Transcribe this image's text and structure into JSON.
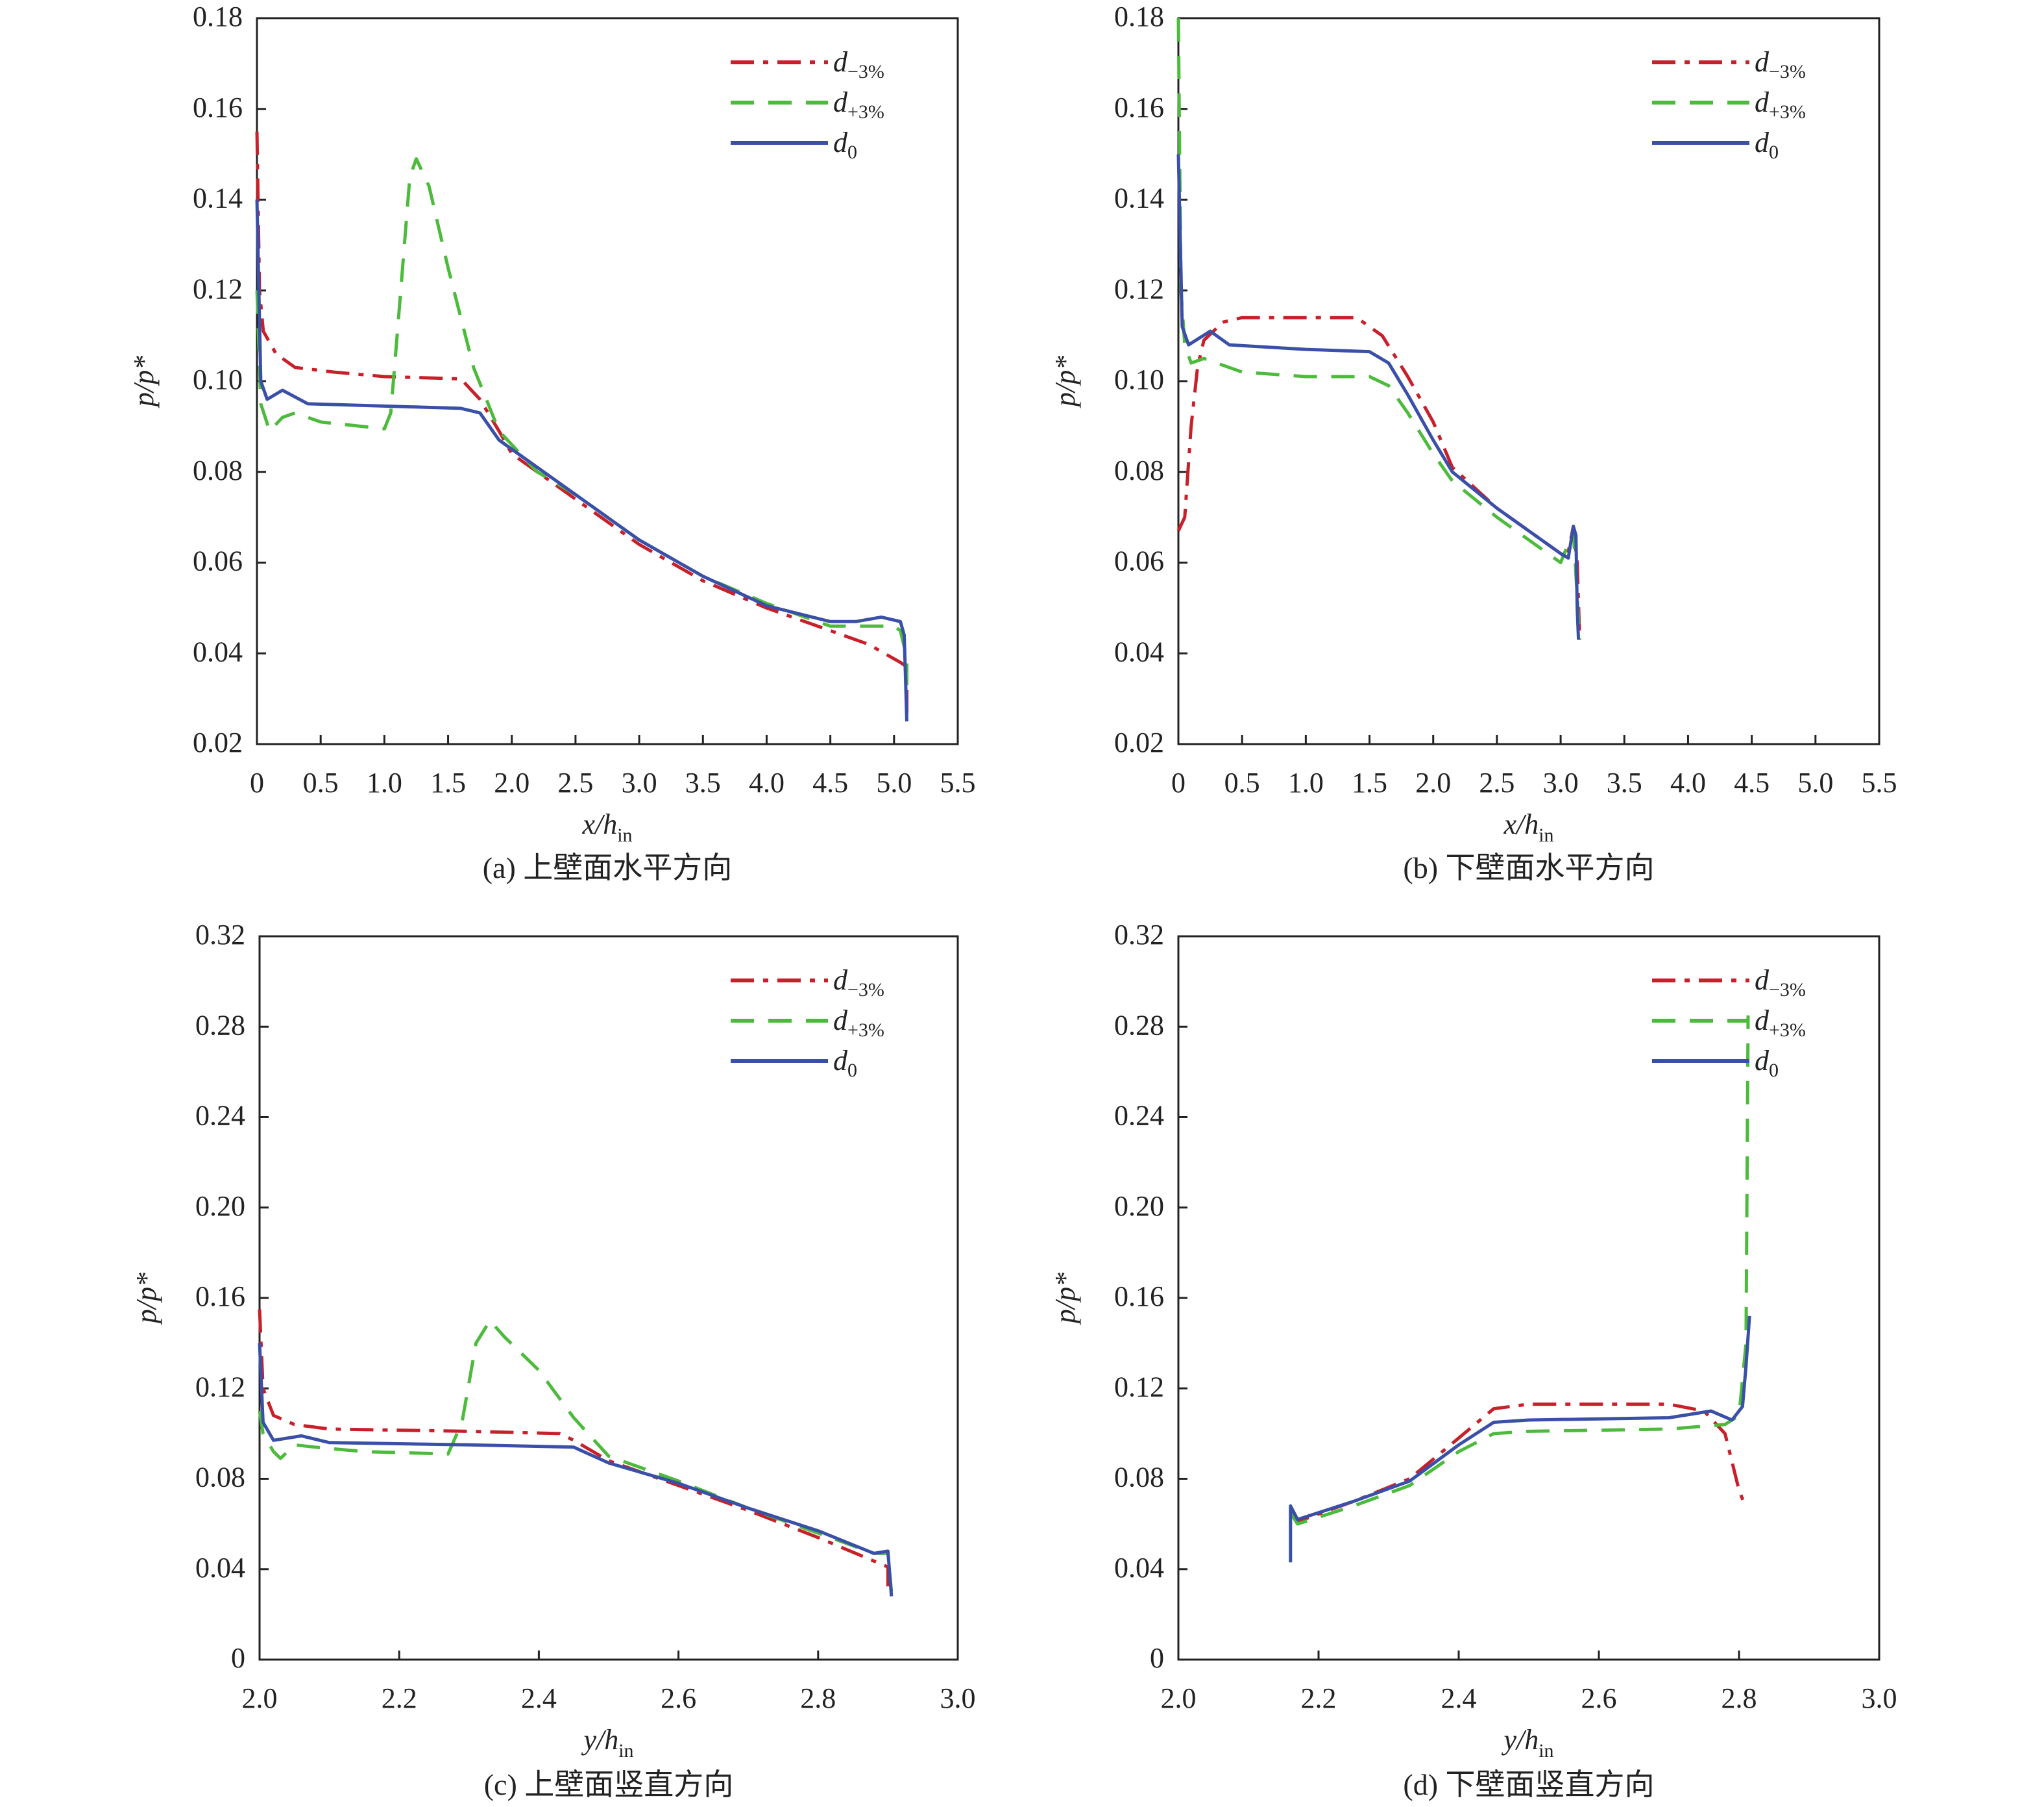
{
  "colors": {
    "d_minus": "#c8202a",
    "d_plus": "#4cbb3c",
    "d0": "#3a4fa8"
  },
  "chart_data": [
    {
      "type": "line",
      "caption": "(a) 上壁面水平方向",
      "xlabel": {
        "main": "x/h",
        "sub": "in"
      },
      "ylabel": "p/p*",
      "xlim": [
        0,
        5.5
      ],
      "ylim": [
        0.02,
        0.18
      ],
      "xticks": [
        "0",
        "0.5",
        "1.0",
        "1.5",
        "2.0",
        "2.5",
        "3.0",
        "3.5",
        "4.0",
        "4.5",
        "5.0",
        "5.5"
      ],
      "xtick_values": [
        0,
        0.5,
        1,
        1.5,
        2,
        2.5,
        3,
        3.5,
        4,
        4.5,
        5,
        5.5
      ],
      "yticks": [
        "0.02",
        "0.04",
        "0.06",
        "0.08",
        "0.10",
        "0.12",
        "0.14",
        "0.16",
        "0.18"
      ],
      "ytick_values": [
        0.02,
        0.04,
        0.06,
        0.08,
        0.1,
        0.12,
        0.14,
        0.16,
        0.18
      ],
      "legend": "top-right",
      "series": [
        {
          "name": "d",
          "sub": "−3%",
          "style": "dashdot",
          "color": "#c8202a",
          "points": [
            [
              0,
              0.155
            ],
            [
              0.02,
              0.12
            ],
            [
              0.05,
              0.111
            ],
            [
              0.15,
              0.106
            ],
            [
              0.3,
              0.103
            ],
            [
              0.6,
              0.102
            ],
            [
              1.0,
              0.101
            ],
            [
              1.6,
              0.1005
            ],
            [
              1.75,
              0.096
            ],
            [
              1.9,
              0.089
            ],
            [
              2.0,
              0.084
            ],
            [
              2.5,
              0.074
            ],
            [
              3.0,
              0.064
            ],
            [
              3.5,
              0.056
            ],
            [
              4.0,
              0.05
            ],
            [
              4.5,
              0.045
            ],
            [
              4.8,
              0.042
            ],
            [
              5.05,
              0.038
            ],
            [
              5.1,
              0.037
            ],
            [
              5.1,
              0.025
            ]
          ]
        },
        {
          "name": "d",
          "sub": "+3%",
          "style": "dashed",
          "color": "#4cbb3c",
          "points": [
            [
              0,
              0.12
            ],
            [
              0.03,
              0.095
            ],
            [
              0.1,
              0.089
            ],
            [
              0.2,
              0.092
            ],
            [
              0.3,
              0.093
            ],
            [
              0.5,
              0.091
            ],
            [
              1.0,
              0.0895
            ],
            [
              1.05,
              0.093
            ],
            [
              1.1,
              0.11
            ],
            [
              1.2,
              0.145
            ],
            [
              1.25,
              0.149
            ],
            [
              1.35,
              0.143
            ],
            [
              1.5,
              0.125
            ],
            [
              1.7,
              0.103
            ],
            [
              1.9,
              0.089
            ],
            [
              2.2,
              0.08
            ],
            [
              2.5,
              0.075
            ],
            [
              3.0,
              0.065
            ],
            [
              3.5,
              0.057
            ],
            [
              4.0,
              0.051
            ],
            [
              4.5,
              0.046
            ],
            [
              5.0,
              0.046
            ],
            [
              5.05,
              0.045
            ],
            [
              5.1,
              0.039
            ],
            [
              5.1,
              0.033
            ]
          ]
        },
        {
          "name": "d",
          "sub": "0",
          "style": "solid",
          "color": "#3a4fa8",
          "points": [
            [
              0,
              0.14
            ],
            [
              0.03,
              0.1
            ],
            [
              0.08,
              0.096
            ],
            [
              0.2,
              0.098
            ],
            [
              0.4,
              0.095
            ],
            [
              1.0,
              0.0945
            ],
            [
              1.6,
              0.094
            ],
            [
              1.75,
              0.093
            ],
            [
              1.9,
              0.087
            ],
            [
              2.0,
              0.085
            ],
            [
              2.5,
              0.075
            ],
            [
              3.0,
              0.065
            ],
            [
              3.5,
              0.057
            ],
            [
              4.0,
              0.0505
            ],
            [
              4.5,
              0.047
            ],
            [
              4.7,
              0.047
            ],
            [
              4.9,
              0.048
            ],
            [
              5.05,
              0.047
            ],
            [
              5.08,
              0.044
            ],
            [
              5.1,
              0.025
            ]
          ]
        }
      ]
    },
    {
      "type": "line",
      "caption": "(b) 下壁面水平方向",
      "xlabel": {
        "main": "x/h",
        "sub": "in"
      },
      "ylabel": "p/p*",
      "xlim": [
        0,
        5.5
      ],
      "ylim": [
        0.02,
        0.18
      ],
      "xticks": [
        "0",
        "0.5",
        "1.0",
        "1.5",
        "2.0",
        "2.5",
        "3.0",
        "3.5",
        "4.0",
        "4.5",
        "5.0",
        "5.5"
      ],
      "xtick_values": [
        0,
        0.5,
        1,
        1.5,
        2,
        2.5,
        3,
        3.5,
        4,
        4.5,
        5,
        5.5
      ],
      "yticks": [
        "0.02",
        "0.04",
        "0.06",
        "0.08",
        "0.10",
        "0.12",
        "0.14",
        "0.16",
        "0.18"
      ],
      "ytick_values": [
        0.02,
        0.04,
        0.06,
        0.08,
        0.1,
        0.12,
        0.14,
        0.16,
        0.18
      ],
      "legend": "top-right",
      "series": [
        {
          "name": "d",
          "sub": "−3%",
          "style": "dashdot",
          "color": "#c8202a",
          "points": [
            [
              0,
              0.067
            ],
            [
              0.05,
              0.07
            ],
            [
              0.1,
              0.09
            ],
            [
              0.15,
              0.103
            ],
            [
              0.2,
              0.109
            ],
            [
              0.35,
              0.113
            ],
            [
              0.5,
              0.114
            ],
            [
              1.0,
              0.114
            ],
            [
              1.4,
              0.114
            ],
            [
              1.6,
              0.11
            ],
            [
              1.8,
              0.101
            ],
            [
              2.0,
              0.091
            ],
            [
              2.15,
              0.081
            ],
            [
              2.5,
              0.072
            ],
            [
              3.0,
              0.062
            ],
            [
              3.05,
              0.061
            ],
            [
              3.1,
              0.068
            ],
            [
              3.13,
              0.06
            ],
            [
              3.15,
              0.043
            ]
          ]
        },
        {
          "name": "d",
          "sub": "+3%",
          "style": "dashed",
          "color": "#4cbb3c",
          "points": [
            [
              0,
              0.18
            ],
            [
              0.02,
              0.12
            ],
            [
              0.05,
              0.108
            ],
            [
              0.1,
              0.104
            ],
            [
              0.2,
              0.105
            ],
            [
              0.5,
              0.102
            ],
            [
              1.0,
              0.101
            ],
            [
              1.5,
              0.101
            ],
            [
              1.65,
              0.099
            ],
            [
              1.8,
              0.093
            ],
            [
              2.0,
              0.084
            ],
            [
              2.15,
              0.078
            ],
            [
              2.5,
              0.07
            ],
            [
              3.0,
              0.06
            ],
            [
              3.1,
              0.067
            ],
            [
              3.15,
              0.043
            ]
          ]
        },
        {
          "name": "d",
          "sub": "0",
          "style": "solid",
          "color": "#3a4fa8",
          "points": [
            [
              0,
              0.15
            ],
            [
              0.03,
              0.112
            ],
            [
              0.08,
              0.108
            ],
            [
              0.25,
              0.111
            ],
            [
              0.4,
              0.108
            ],
            [
              1.0,
              0.107
            ],
            [
              1.5,
              0.1065
            ],
            [
              1.65,
              0.104
            ],
            [
              1.8,
              0.097
            ],
            [
              2.0,
              0.087
            ],
            [
              2.15,
              0.08
            ],
            [
              2.5,
              0.072
            ],
            [
              3.0,
              0.062
            ],
            [
              3.06,
              0.061
            ],
            [
              3.1,
              0.068
            ],
            [
              3.12,
              0.066
            ],
            [
              3.13,
              0.05
            ],
            [
              3.14,
              0.043
            ]
          ]
        }
      ]
    },
    {
      "type": "line",
      "caption": "(c) 上壁面竖直方向",
      "xlabel": {
        "main": "y/h",
        "sub": "in"
      },
      "ylabel": "p/p*",
      "xlim": [
        2.0,
        3.0
      ],
      "ylim": [
        0,
        0.32
      ],
      "xticks": [
        "2.0",
        "2.2",
        "2.4",
        "2.6",
        "2.8",
        "3.0"
      ],
      "xtick_values": [
        2.0,
        2.2,
        2.4,
        2.6,
        2.8,
        3.0
      ],
      "yticks": [
        "0",
        "0.04",
        "0.08",
        "0.12",
        "0.16",
        "0.20",
        "0.24",
        "0.28",
        "0.32"
      ],
      "ytick_values": [
        0,
        0.04,
        0.08,
        0.12,
        0.16,
        0.2,
        0.24,
        0.28,
        0.32
      ],
      "legend": "top-right",
      "series": [
        {
          "name": "d",
          "sub": "−3%",
          "style": "dashdot",
          "color": "#c8202a",
          "points": [
            [
              2.0,
              0.155
            ],
            [
              2.005,
              0.12
            ],
            [
              2.02,
              0.108
            ],
            [
              2.05,
              0.104
            ],
            [
              2.1,
              0.102
            ],
            [
              2.3,
              0.101
            ],
            [
              2.43,
              0.1
            ],
            [
              2.45,
              0.097
            ],
            [
              2.5,
              0.088
            ],
            [
              2.6,
              0.077
            ],
            [
              2.7,
              0.066
            ],
            [
              2.8,
              0.054
            ],
            [
              2.9,
              0.041
            ],
            [
              2.9,
              0.03
            ]
          ]
        },
        {
          "name": "d",
          "sub": "+3%",
          "style": "dashed",
          "color": "#4cbb3c",
          "points": [
            [
              2.0,
              0.11
            ],
            [
              2.005,
              0.1
            ],
            [
              2.02,
              0.092
            ],
            [
              2.03,
              0.089
            ],
            [
              2.05,
              0.095
            ],
            [
              2.08,
              0.094
            ],
            [
              2.15,
              0.092
            ],
            [
              2.27,
              0.091
            ],
            [
              2.29,
              0.105
            ],
            [
              2.31,
              0.14
            ],
            [
              2.33,
              0.15
            ],
            [
              2.35,
              0.143
            ],
            [
              2.4,
              0.128
            ],
            [
              2.45,
              0.107
            ],
            [
              2.5,
              0.09
            ],
            [
              2.6,
              0.079
            ],
            [
              2.7,
              0.067
            ],
            [
              2.8,
              0.056
            ],
            [
              2.88,
              0.047
            ],
            [
              2.9,
              0.047
            ],
            [
              2.905,
              0.03
            ]
          ]
        },
        {
          "name": "d",
          "sub": "0",
          "style": "solid",
          "color": "#3a4fa8",
          "points": [
            [
              2.0,
              0.14
            ],
            [
              2.005,
              0.105
            ],
            [
              2.02,
              0.097
            ],
            [
              2.06,
              0.099
            ],
            [
              2.1,
              0.096
            ],
            [
              2.3,
              0.095
            ],
            [
              2.45,
              0.094
            ],
            [
              2.5,
              0.087
            ],
            [
              2.6,
              0.078
            ],
            [
              2.7,
              0.067
            ],
            [
              2.8,
              0.057
            ],
            [
              2.88,
              0.047
            ],
            [
              2.9,
              0.048
            ],
            [
              2.905,
              0.028
            ]
          ]
        }
      ]
    },
    {
      "type": "line",
      "caption": "(d) 下壁面竖直方向",
      "xlabel": {
        "main": "y/h",
        "sub": "in"
      },
      "ylabel": "p/p*",
      "xlim": [
        2.0,
        3.0
      ],
      "ylim": [
        0,
        0.32
      ],
      "xticks": [
        "2.0",
        "2.2",
        "2.4",
        "2.6",
        "2.8",
        "3.0"
      ],
      "xtick_values": [
        2.0,
        2.2,
        2.4,
        2.6,
        2.8,
        3.0
      ],
      "yticks": [
        "0",
        "0.04",
        "0.08",
        "0.12",
        "0.16",
        "0.20",
        "0.24",
        "0.28",
        "0.32"
      ],
      "ytick_values": [
        0,
        0.04,
        0.08,
        0.12,
        0.16,
        0.2,
        0.24,
        0.28,
        0.32
      ],
      "legend": "top-right",
      "series": [
        {
          "name": "d",
          "sub": "−3%",
          "style": "dashdot",
          "color": "#c8202a",
          "points": [
            [
              2.16,
              0.065
            ],
            [
              2.17,
              0.061
            ],
            [
              2.25,
              0.07
            ],
            [
              2.33,
              0.08
            ],
            [
              2.4,
              0.098
            ],
            [
              2.45,
              0.111
            ],
            [
              2.5,
              0.113
            ],
            [
              2.7,
              0.113
            ],
            [
              2.75,
              0.11
            ],
            [
              2.78,
              0.1
            ],
            [
              2.8,
              0.075
            ],
            [
              2.81,
              0.067
            ]
          ]
        },
        {
          "name": "d",
          "sub": "+3%",
          "style": "dashed",
          "color": "#4cbb3c",
          "points": [
            [
              2.16,
              0.065
            ],
            [
              2.17,
              0.06
            ],
            [
              2.25,
              0.068
            ],
            [
              2.33,
              0.077
            ],
            [
              2.4,
              0.092
            ],
            [
              2.45,
              0.1
            ],
            [
              2.5,
              0.101
            ],
            [
              2.7,
              0.102
            ],
            [
              2.78,
              0.104
            ],
            [
              2.8,
              0.108
            ],
            [
              2.81,
              0.14
            ],
            [
              2.813,
              0.285
            ]
          ]
        },
        {
          "name": "d",
          "sub": "0",
          "style": "solid",
          "color": "#3a4fa8",
          "points": [
            [
              2.16,
              0.043
            ],
            [
              2.16,
              0.068
            ],
            [
              2.17,
              0.062
            ],
            [
              2.25,
              0.07
            ],
            [
              2.33,
              0.079
            ],
            [
              2.4,
              0.095
            ],
            [
              2.45,
              0.105
            ],
            [
              2.5,
              0.106
            ],
            [
              2.7,
              0.107
            ],
            [
              2.76,
              0.11
            ],
            [
              2.79,
              0.106
            ],
            [
              2.805,
              0.112
            ],
            [
              2.81,
              0.13
            ],
            [
              2.815,
              0.152
            ]
          ]
        }
      ]
    }
  ]
}
